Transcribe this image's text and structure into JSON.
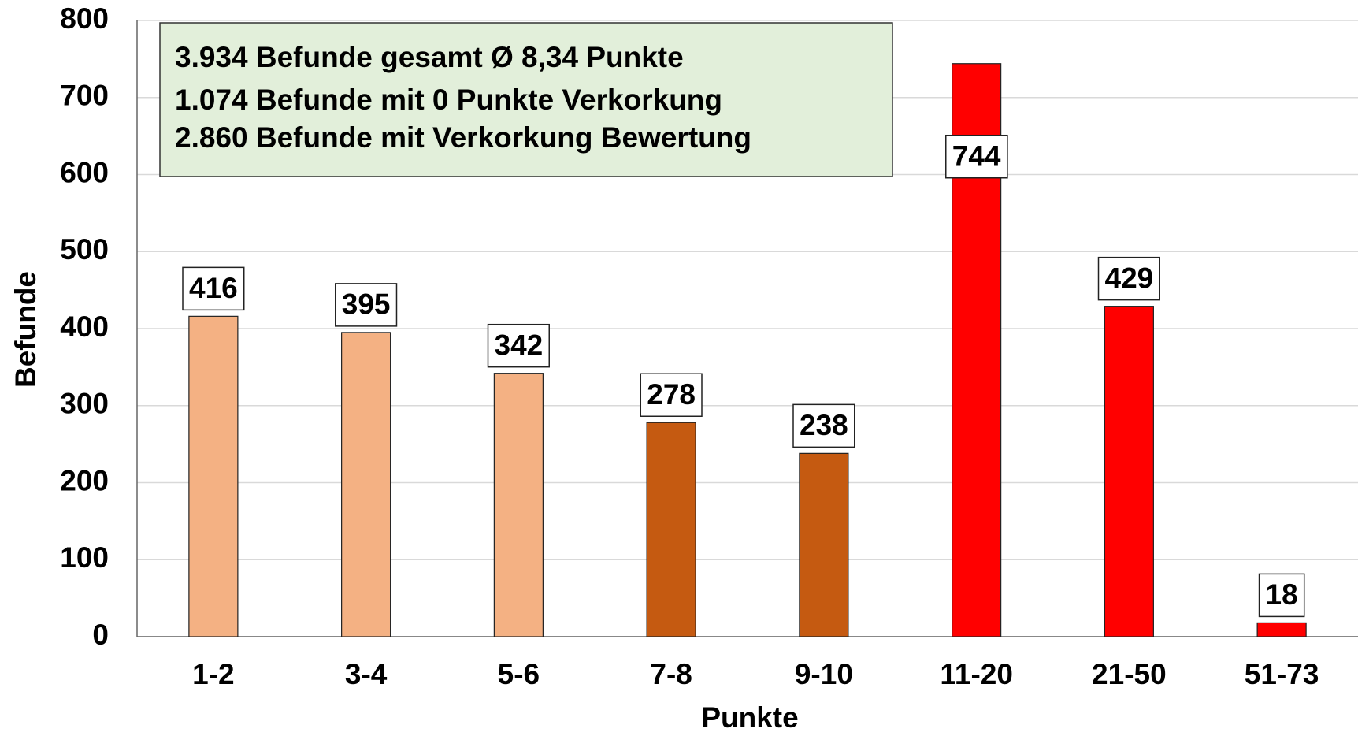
{
  "chart_data": {
    "type": "bar",
    "annotations": [
      "3.934 Befunde gesamt  Ø 8,34 Punkte",
      "1.074 Befunde mit 0 Punkte Verkorkung",
      "2.860 Befunde mit Verkorkung Bewertung"
    ],
    "x_label": "Punkte",
    "y_label": "Befunde",
    "categories": [
      "1-2",
      "3-4",
      "5-6",
      "7-8",
      "9-10",
      "11-20",
      "21-50",
      "51-73"
    ],
    "values": [
      416,
      395,
      342,
      278,
      238,
      744,
      429,
      18
    ],
    "colors": [
      "#f4b183",
      "#f4b183",
      "#f4b183",
      "#c55a11",
      "#c55a11",
      "#ff0000",
      "#ff0000",
      "#ff0000"
    ],
    "ylim": [
      0,
      800
    ],
    "yticks": [
      0,
      100,
      200,
      300,
      400,
      500,
      600,
      700,
      800
    ],
    "grid": true
  }
}
